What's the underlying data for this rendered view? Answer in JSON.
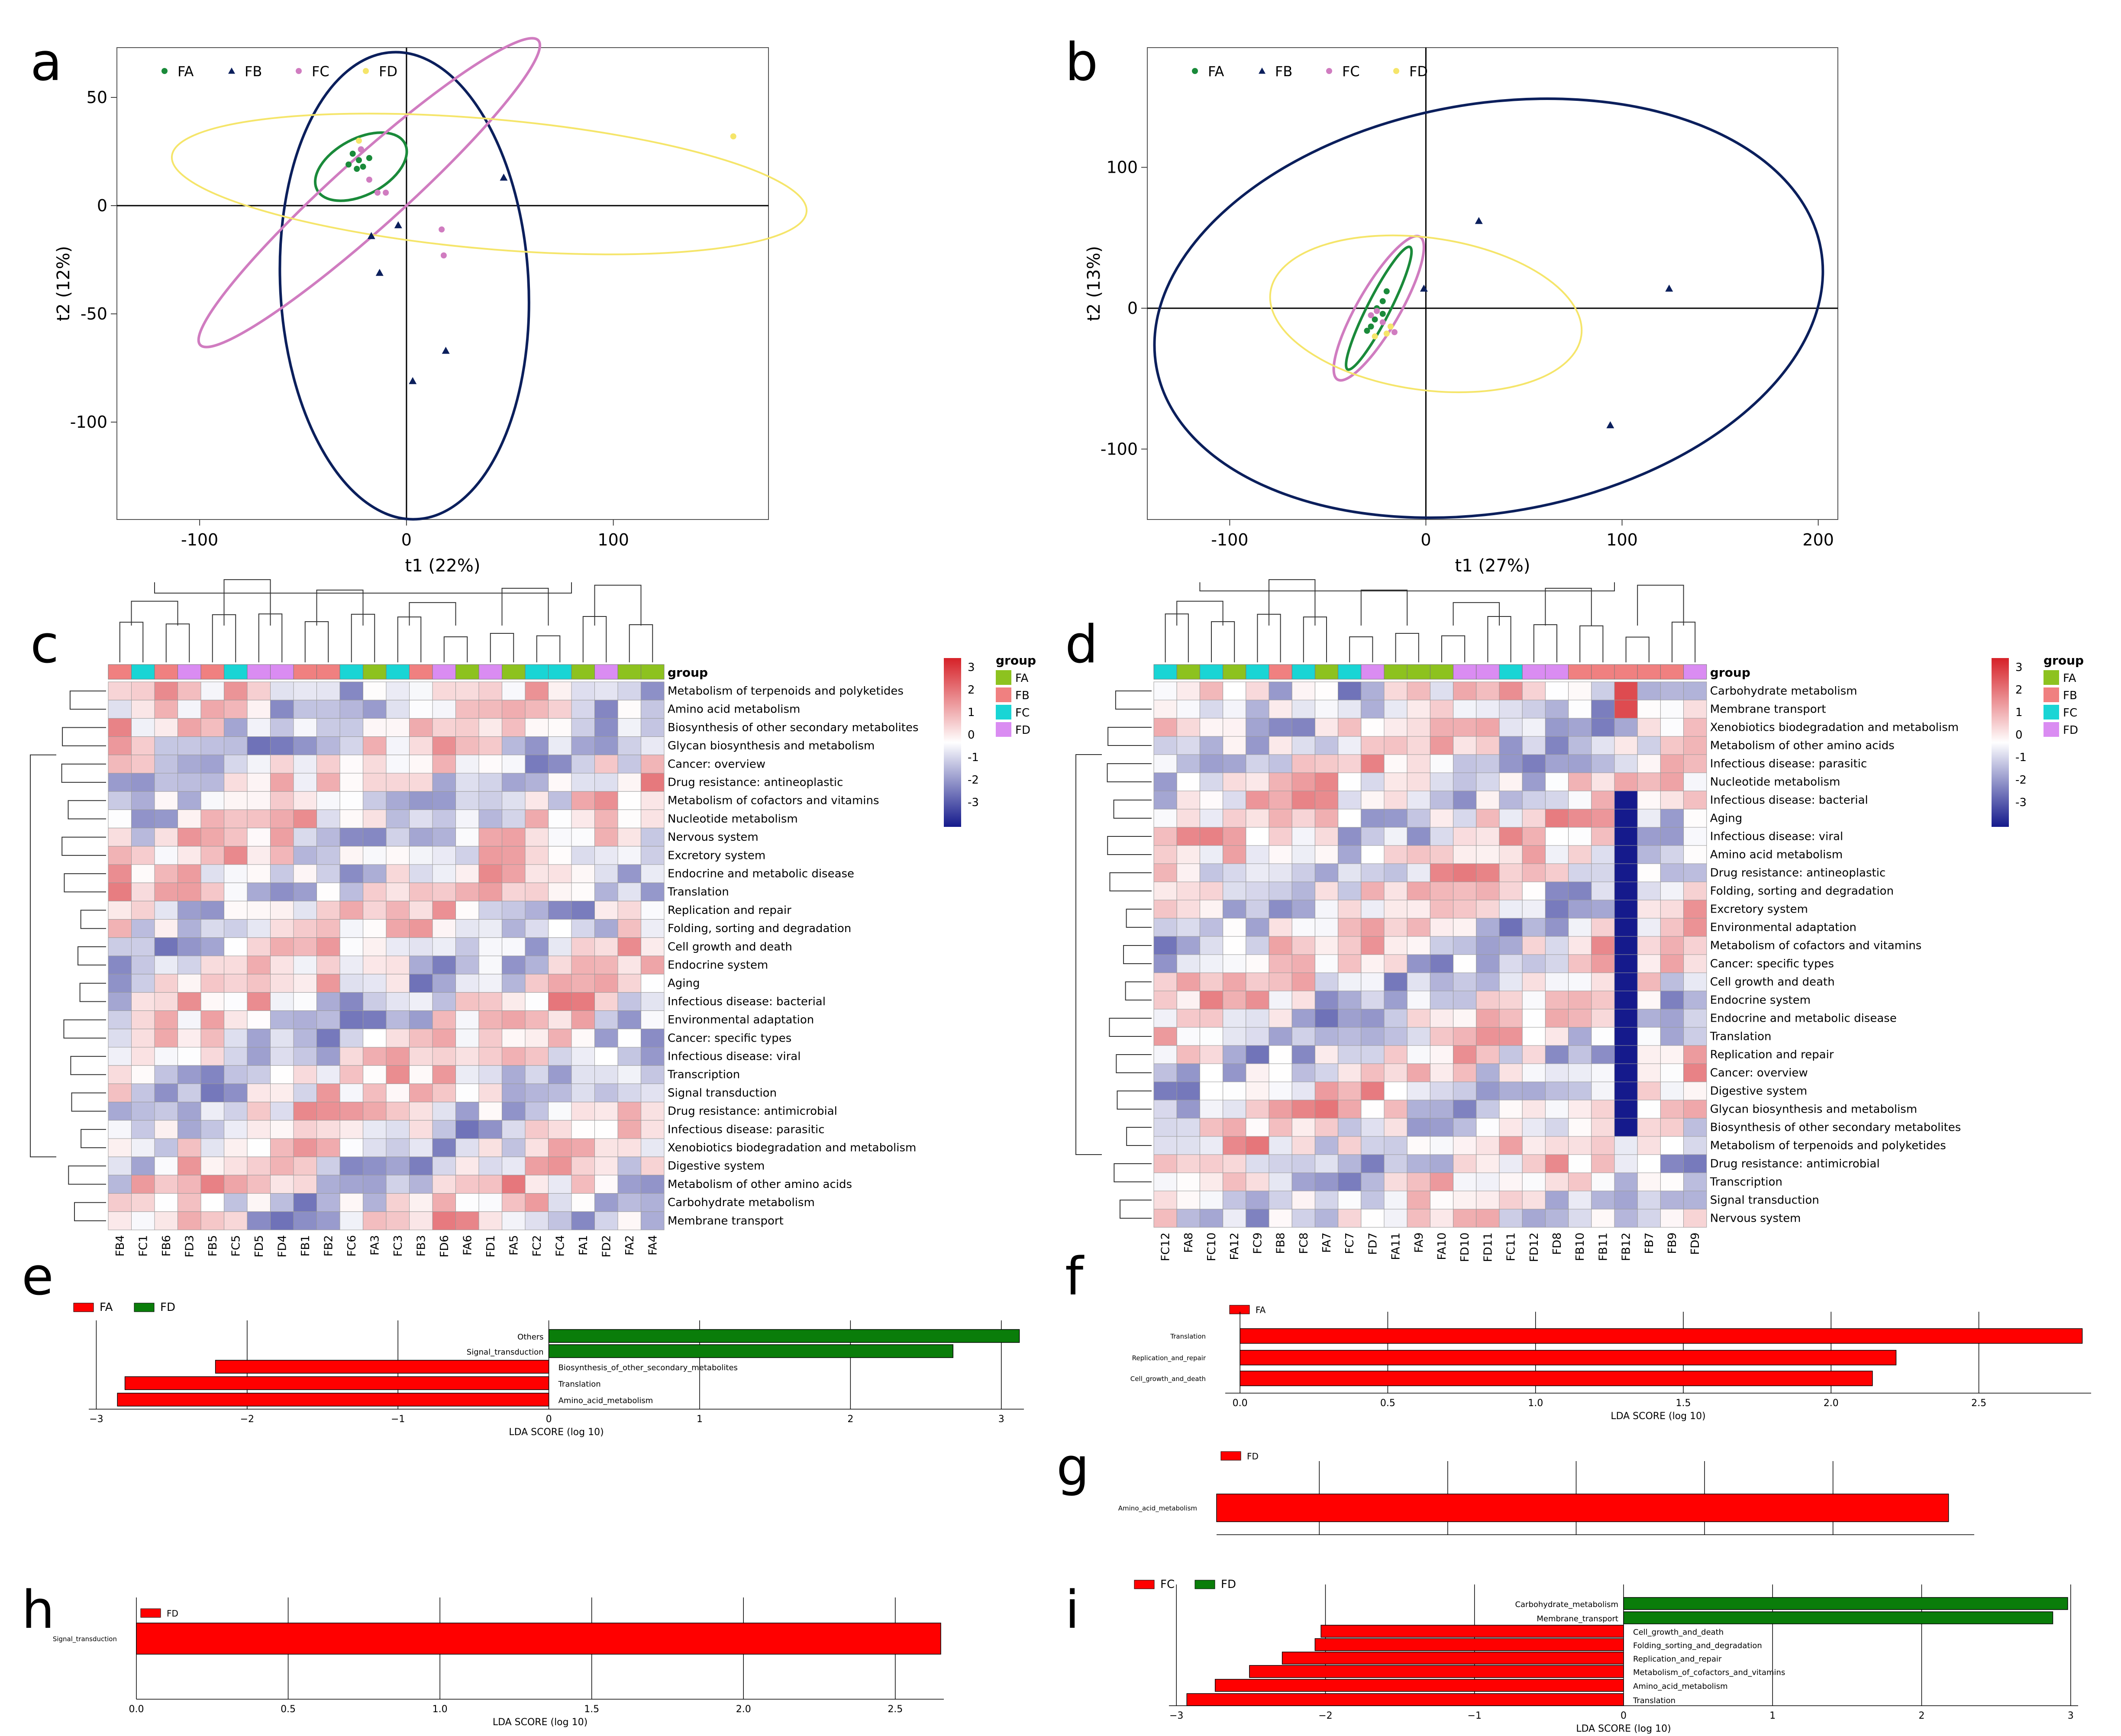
{
  "colors": {
    "FA": "#8DC21F",
    "FB": "#F08080",
    "FC": "#19D5D5",
    "FD": "#DA8CF2",
    "scatterFA": "#1A8A3A",
    "scatterFB": "#0B1F5C",
    "scatterFC": "#D07CC0",
    "scatterFD": "#F5E56A",
    "ldaRed": "#FF0000",
    "ldaGreen": "#0A7D0A",
    "heatLow": "#151A8C",
    "heatMid": "#FFFFFF",
    "heatHigh": "#D62128"
  },
  "chart_data": [
    {
      "panel": "a",
      "type": "scatter",
      "xlabel": "t1 (22%)",
      "ylabel": "t2 (12%)",
      "xlim": [
        -140,
        175
      ],
      "ylim": [
        -145,
        73
      ],
      "xticks": [
        -100,
        0,
        100
      ],
      "yticks": [
        50,
        0,
        -50,
        -100
      ],
      "legend": [
        "FA",
        "FB",
        "FC",
        "FD"
      ],
      "legend_position": "top-left",
      "series": [
        {
          "name": "FA",
          "marker": "dot",
          "points": [
            [
              -26,
              24
            ],
            [
              -23,
              21
            ],
            [
              -21,
              18
            ],
            [
              -24,
              17
            ],
            [
              -18,
              22
            ],
            [
              -22,
              26
            ],
            [
              -28,
              19
            ]
          ]
        },
        {
          "name": "FB",
          "marker": "triangle",
          "points": [
            [
              47,
              13
            ],
            [
              -17,
              -14
            ],
            [
              -4,
              -9
            ],
            [
              -13,
              -31
            ],
            [
              19,
              -67
            ],
            [
              3,
              -81
            ]
          ]
        },
        {
          "name": "FC",
          "marker": "dot",
          "points": [
            [
              -22,
              26
            ],
            [
              -18,
              12
            ],
            [
              -14,
              6
            ],
            [
              -10,
              6
            ],
            [
              17,
              -11
            ],
            [
              18,
              -23
            ]
          ]
        },
        {
          "name": "FD",
          "marker": "dot",
          "points": [
            [
              158,
              32
            ],
            [
              -23,
              30
            ]
          ]
        }
      ],
      "ellipses": [
        {
          "group": "FA",
          "cx": -22,
          "cy": 18,
          "rx": 24,
          "ry": 13,
          "angle_deg": -28
        },
        {
          "group": "FB",
          "cx": -1,
          "cy": -37,
          "rx": 60,
          "ry": 108,
          "angle_deg": -3
        },
        {
          "group": "FC",
          "cx": -18,
          "cy": 6,
          "rx": 110,
          "ry": 16,
          "angle_deg": -42
        },
        {
          "group": "FD",
          "cx": 40,
          "cy": 10,
          "rx": 154,
          "ry": 30,
          "angle_deg": 5
        }
      ]
    },
    {
      "panel": "b",
      "type": "scatter",
      "xlabel": "t1 (27%)",
      "ylabel": "t2 (13%)",
      "xlim": [
        -142,
        210
      ],
      "ylim": [
        -150,
        185
      ],
      "xticks": [
        -100,
        0,
        100,
        200
      ],
      "yticks": [
        100,
        0,
        -100
      ],
      "legend": [
        "FA",
        "FB",
        "FC",
        "FD"
      ],
      "legend_position": "top-left",
      "series": [
        {
          "name": "FA",
          "marker": "dot",
          "points": [
            [
              -20,
              12
            ],
            [
              -22,
              5
            ],
            [
              -25,
              0
            ],
            [
              -26,
              -8
            ],
            [
              -28,
              -13
            ],
            [
              -30,
              -16
            ],
            [
              -22,
              -4
            ]
          ]
        },
        {
          "name": "FB",
          "marker": "triangle",
          "points": [
            [
              27,
              62
            ],
            [
              124,
              14
            ],
            [
              94,
              -83
            ],
            [
              -1,
              14
            ]
          ]
        },
        {
          "name": "FC",
          "marker": "dot",
          "points": [
            [
              -25,
              -2
            ],
            [
              -22,
              -10
            ],
            [
              -16,
              -17
            ],
            [
              -28,
              -5
            ]
          ]
        },
        {
          "name": "FD",
          "marker": "dot",
          "points": [
            [
              -18,
              -13
            ],
            [
              -26,
              -20
            ],
            [
              -20,
              -18
            ]
          ]
        }
      ],
      "ellipses": [
        {
          "group": "FA",
          "cx": -24,
          "cy": 0,
          "rx": 35,
          "ry": 8,
          "angle_deg": -63
        },
        {
          "group": "FB",
          "cx": 32,
          "cy": 0,
          "rx": 172,
          "ry": 145,
          "angle_deg": -10
        },
        {
          "group": "FC",
          "cx": -24,
          "cy": 0,
          "rx": 42,
          "ry": 15,
          "angle_deg": -60
        },
        {
          "group": "FD",
          "cx": 0,
          "cy": -4,
          "rx": 80,
          "ry": 54,
          "angle_deg": 8
        }
      ]
    },
    {
      "panel": "c",
      "type": "heatmap",
      "legend_title": "group",
      "groups": [
        "FA",
        "FB",
        "FC",
        "FD"
      ],
      "scale_ticks": [
        3,
        2,
        1,
        0,
        -1,
        -2,
        -3
      ],
      "columns": [
        "FB4",
        "FC1",
        "FB6",
        "FD3",
        "FB5",
        "FC5",
        "FD5",
        "FD4",
        "FB1",
        "FB2",
        "FC6",
        "FA3",
        "FC3",
        "FB3",
        "FD6",
        "FA6",
        "FD1",
        "FA5",
        "FC2",
        "FC4",
        "FA1",
        "FD2",
        "FA2",
        "FA4"
      ],
      "rows": [
        "Metabolism of terpenoids and polyketides",
        "Amino acid metabolism",
        "Biosynthesis of other secondary metabolites",
        "Glycan biosynthesis and metabolism",
        "Cancer: overview",
        "Drug resistance: antineoplastic",
        "Metabolism of cofactors and vitamins",
        "Nucleotide metabolism",
        "Nervous system",
        "Excretory system",
        "Endocrine and metabolic disease",
        "Translation",
        "Replication and repair",
        "Folding, sorting and degradation",
        "Cell growth and death",
        "Endocrine system",
        "Aging",
        "Infectious disease: bacterial",
        "Environmental adaptation",
        "Cancer: specific types",
        "Infectious disease: viral",
        "Transcription",
        "Signal transduction",
        "Drug resistance: antimicrobial",
        "Infectious disease: parasitic",
        "Xenobiotics biodegradation and metabolism",
        "Digestive system",
        "Metabolism of other amino acids",
        "Carbohydrate metabolism",
        "Membrane transport"
      ]
    },
    {
      "panel": "d",
      "type": "heatmap",
      "legend_title": "group",
      "groups": [
        "FA",
        "FB",
        "FC",
        "FD"
      ],
      "scale_ticks": [
        3,
        2,
        1,
        0,
        -1,
        -2,
        -3
      ],
      "columns": [
        "FC12",
        "FA8",
        "FC10",
        "FA12",
        "FC9",
        "FB8",
        "FC8",
        "FA7",
        "FC7",
        "FD7",
        "FA11",
        "FA9",
        "FA10",
        "FD10",
        "FD11",
        "FC11",
        "FD12",
        "FD8",
        "FB10",
        "FB11",
        "FB12",
        "FB7",
        "FB9",
        "FD9"
      ],
      "rows": [
        "Carbohydrate metabolism",
        "Membrane transport",
        "Xenobiotics biodegradation and metabolism",
        "Metabolism of other amino acids",
        "Infectious disease: parasitic",
        "Nucleotide metabolism",
        "Infectious disease: bacterial",
        "Aging",
        "Infectious disease: viral",
        "Amino acid metabolism",
        "Drug resistance: antineoplastic",
        "Folding, sorting and degradation",
        "Excretory system",
        "Environmental adaptation",
        "Metabolism of cofactors and vitamins",
        "Cancer: specific types",
        "Cell growth and death",
        "Endocrine system",
        "Endocrine and metabolic disease",
        "Translation",
        "Replication and repair",
        "Cancer: overview",
        "Digestive system",
        "Glycan biosynthesis and metabolism",
        "Biosynthesis of other secondary metabolites",
        "Metabolism of terpenoids and polyketides",
        "Drug resistance: antimicrobial",
        "Transcription",
        "Signal transduction",
        "Nervous system"
      ]
    },
    {
      "panel": "e",
      "type": "bar",
      "orientation": "horizontal",
      "legend": [
        "FA",
        "FD"
      ],
      "xlabel": "LDA SCORE (log 10)",
      "xlim": [
        -3.05,
        3.15
      ],
      "xticks": [
        -3,
        -2,
        -1,
        0,
        1,
        2,
        3
      ],
      "categories": [
        "Others",
        "Signal_transduction",
        "Biosynthesis_of_other_secondary_metabolites",
        "Translation",
        "Amino_acid_metabolism"
      ],
      "values": [
        3.12,
        2.68,
        -2.21,
        -2.81,
        -2.86
      ],
      "groups": [
        "FD",
        "FD",
        "FA",
        "FA",
        "FA"
      ]
    },
    {
      "panel": "f",
      "type": "bar",
      "orientation": "horizontal",
      "legend": [
        "FA"
      ],
      "xlabel": "LDA SCORE (log 10)",
      "xlim": [
        -0.05,
        2.88
      ],
      "xticks": [
        0.0,
        0.5,
        1.0,
        1.5,
        2.0,
        2.5
      ],
      "tick_labels": [
        "0.0",
        "0.5",
        "1.0",
        "1.5",
        "2.0",
        "2.5"
      ],
      "categories": [
        "Translation",
        "Replication_and_repair",
        "Cell_growth_and_death"
      ],
      "values": [
        2.85,
        2.22,
        2.14
      ],
      "groups": [
        "FA",
        "FA",
        "FA"
      ]
    },
    {
      "panel": "g",
      "type": "bar",
      "orientation": "horizontal",
      "legend": [
        "FD"
      ],
      "categories": [
        "Amino_acid_metabolism"
      ],
      "values": [
        2.85
      ],
      "groups": [
        "FD"
      ]
    },
    {
      "panel": "h",
      "type": "bar",
      "orientation": "horizontal",
      "legend": [
        "FD"
      ],
      "xlabel": "LDA SCORE (log 10)",
      "xlim": [
        0,
        2.66
      ],
      "xticks": [
        0.0,
        0.5,
        1.0,
        1.5,
        2.0,
        2.5
      ],
      "tick_labels": [
        "0.0",
        "0.5",
        "1.0",
        "1.5",
        "2.0",
        "2.5"
      ],
      "categories": [
        "Signal_transduction"
      ],
      "values": [
        2.65
      ],
      "groups": [
        "FD"
      ]
    },
    {
      "panel": "i",
      "type": "bar",
      "orientation": "horizontal",
      "legend": [
        "FC",
        "FD"
      ],
      "xlabel": "LDA SCORE (log 10)",
      "xlim": [
        -3.05,
        3.05
      ],
      "xticks": [
        -3,
        -2,
        -1,
        0,
        1,
        2,
        3
      ],
      "categories": [
        "Carbohydrate_metabolism",
        "Membrane_transport",
        "Cell_growth_and_death",
        "Folding_sorting_and_degradation",
        "Replication_and_repair",
        "Metabolism_of_cofactors_and_vitamins",
        "Amino_acid_metabolism",
        "Translation"
      ],
      "values": [
        2.98,
        2.88,
        -2.03,
        -2.07,
        -2.29,
        -2.51,
        -2.74,
        -2.93
      ],
      "groups": [
        "FD",
        "FD",
        "FC",
        "FC",
        "FC",
        "FC",
        "FC",
        "FC"
      ]
    }
  ]
}
